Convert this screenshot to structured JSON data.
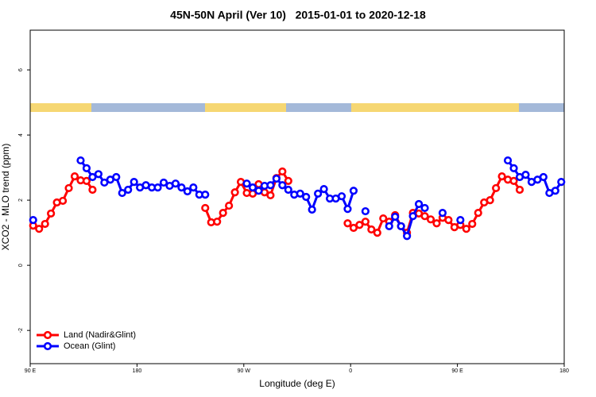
{
  "chart_data": {
    "type": "line",
    "title": "45N-50N April (Ver 10)   2015-01-01 to 2020-12-18",
    "x_label": "Longitude (deg E)",
    "y_label": "XCO2 - MLO trend (ppm)",
    "x": [
      92.5,
      97.5,
      102.5,
      107.5,
      112.5,
      117.5,
      122.5,
      127.5,
      132.5,
      137.5,
      142.5,
      147.5,
      152.5,
      157.5,
      162.5,
      167.5,
      172.5,
      177.5,
      182.5,
      187.5,
      192.5,
      197.5,
      202.5,
      207.5,
      212.5,
      217.5,
      222.5,
      227.5,
      232.5,
      237.5,
      242.5,
      247.5,
      252.5,
      257.5,
      262.5,
      267.5,
      272.5,
      277.5,
      282.5,
      287.5,
      292.5,
      297.5,
      302.5,
      307.5,
      312.5,
      317.5,
      322.5,
      327.5,
      332.5,
      337.5,
      342.5,
      347.5,
      352.5,
      357.5,
      362.5,
      367.5,
      372.5,
      377.5,
      382.5,
      387.5,
      392.5,
      397.5,
      402.5,
      407.5,
      412.5,
      417.5,
      422.5,
      427.5,
      432.5,
      437.5,
      442.5,
      447.5,
      452.5,
      457.5,
      462.5,
      467.5,
      472.5,
      477.5,
      482.5,
      487.5,
      492.5,
      497.5,
      502.5,
      507.5,
      512.5,
      517.5,
      522.5,
      527.5,
      532.5,
      537.5
    ],
    "series": [
      {
        "name": "Land (Nadir&Glint)",
        "color": "#ff0000",
        "values": [
          1.22,
          1.12,
          1.27,
          1.59,
          1.93,
          1.98,
          2.37,
          2.73,
          2.61,
          2.59,
          2.32,
          null,
          null,
          null,
          null,
          null,
          null,
          null,
          null,
          null,
          null,
          null,
          null,
          null,
          null,
          null,
          null,
          null,
          null,
          1.76,
          1.32,
          1.34,
          1.61,
          1.83,
          2.24,
          2.56,
          2.22,
          2.2,
          2.49,
          2.24,
          2.15,
          2.68,
          2.88,
          2.59,
          null,
          null,
          null,
          null,
          null,
          null,
          null,
          null,
          null,
          1.29,
          1.15,
          1.24,
          1.34,
          1.1,
          1.0,
          1.44,
          1.34,
          1.54,
          1.2,
          1.0,
          1.61,
          1.59,
          1.51,
          1.41,
          1.29,
          1.46,
          1.39,
          1.17,
          1.24,
          1.12,
          1.27,
          1.61,
          1.93,
          2.0,
          2.37,
          2.73,
          2.63,
          2.59,
          2.32,
          null,
          null,
          null,
          null,
          null,
          null,
          null
        ]
      },
      {
        "name": "Ocean (Glint)",
        "color": "#0000ff",
        "values": [
          1.39,
          null,
          null,
          null,
          null,
          null,
          null,
          null,
          3.22,
          2.98,
          2.71,
          2.8,
          2.54,
          2.63,
          2.71,
          2.22,
          2.32,
          2.56,
          2.39,
          2.46,
          2.39,
          2.39,
          2.54,
          2.44,
          2.51,
          2.39,
          2.27,
          2.39,
          2.17,
          2.17,
          null,
          null,
          null,
          null,
          null,
          null,
          2.51,
          2.39,
          2.29,
          2.44,
          2.46,
          2.66,
          2.46,
          2.32,
          2.17,
          2.2,
          2.1,
          1.71,
          2.2,
          2.34,
          2.05,
          2.05,
          2.12,
          1.73,
          2.29,
          null,
          1.66,
          null,
          null,
          null,
          1.2,
          1.49,
          1.2,
          0.9,
          1.51,
          1.88,
          1.76,
          null,
          null,
          1.61,
          null,
          null,
          1.39,
          null,
          null,
          null,
          null,
          null,
          null,
          null,
          3.22,
          2.98,
          2.71,
          2.78,
          2.56,
          2.63,
          2.71,
          2.22,
          2.29,
          2.56
        ]
      }
    ],
    "xlim": [
      90,
      540
    ],
    "xticks": [
      {
        "value": 90,
        "label": "90 E"
      },
      {
        "value": 180,
        "label": "180"
      },
      {
        "value": 270,
        "label": "90 W"
      },
      {
        "value": 360,
        "label": "0"
      },
      {
        "value": 450,
        "label": "90 E"
      },
      {
        "value": 540,
        "label": "180"
      }
    ],
    "ylim": [
      -3.02,
      7.22
    ],
    "yticks": [
      -2,
      0,
      2,
      4,
      6
    ],
    "legend": "bottom-left",
    "grid": false
  }
}
